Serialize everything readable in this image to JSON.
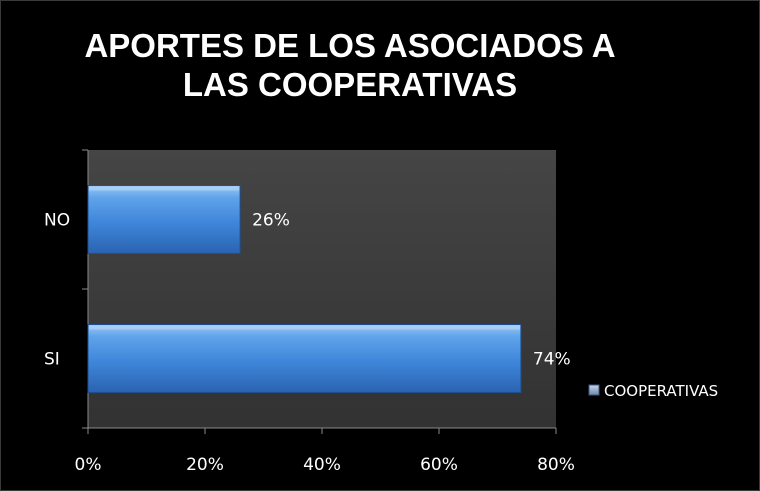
{
  "chart_data": {
    "type": "bar",
    "orientation": "horizontal",
    "title": "APORTES DE LOS ASOCIADOS A\nLAS COOPERATIVAS",
    "categories": [
      "NO",
      "SI"
    ],
    "series": [
      {
        "name": "COOPERATIVAS",
        "values": [
          26,
          74
        ],
        "color": "#4a8fdc"
      }
    ],
    "data_labels": [
      "26%",
      "74%"
    ],
    "x_ticks": [
      "0%",
      "20%",
      "40%",
      "60%",
      "80%"
    ],
    "xlim": [
      0,
      80
    ],
    "grid": false,
    "legend": "right",
    "background_color": "#000000",
    "plot_area_color": "#3b3b3b"
  }
}
